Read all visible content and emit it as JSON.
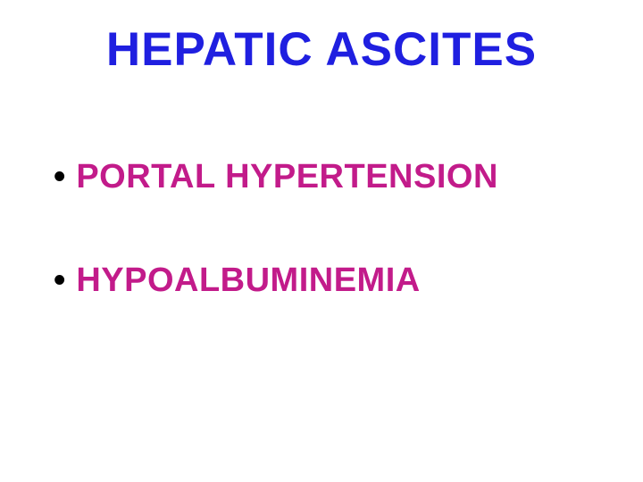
{
  "slide": {
    "title": "HEPATIC ASCITES",
    "title_color": "#1f1fe0",
    "title_fontsize": 53,
    "background_color": "#ffffff",
    "bullets": [
      {
        "text": "PORTAL HYPERTENSION",
        "color": "#c21b8a",
        "fontsize": 38
      },
      {
        "text": "HYPOALBUMINEMIA",
        "color": "#c21b8a",
        "fontsize": 38
      }
    ],
    "bullet_marker": "•",
    "bullet_marker_color": "#000000"
  }
}
